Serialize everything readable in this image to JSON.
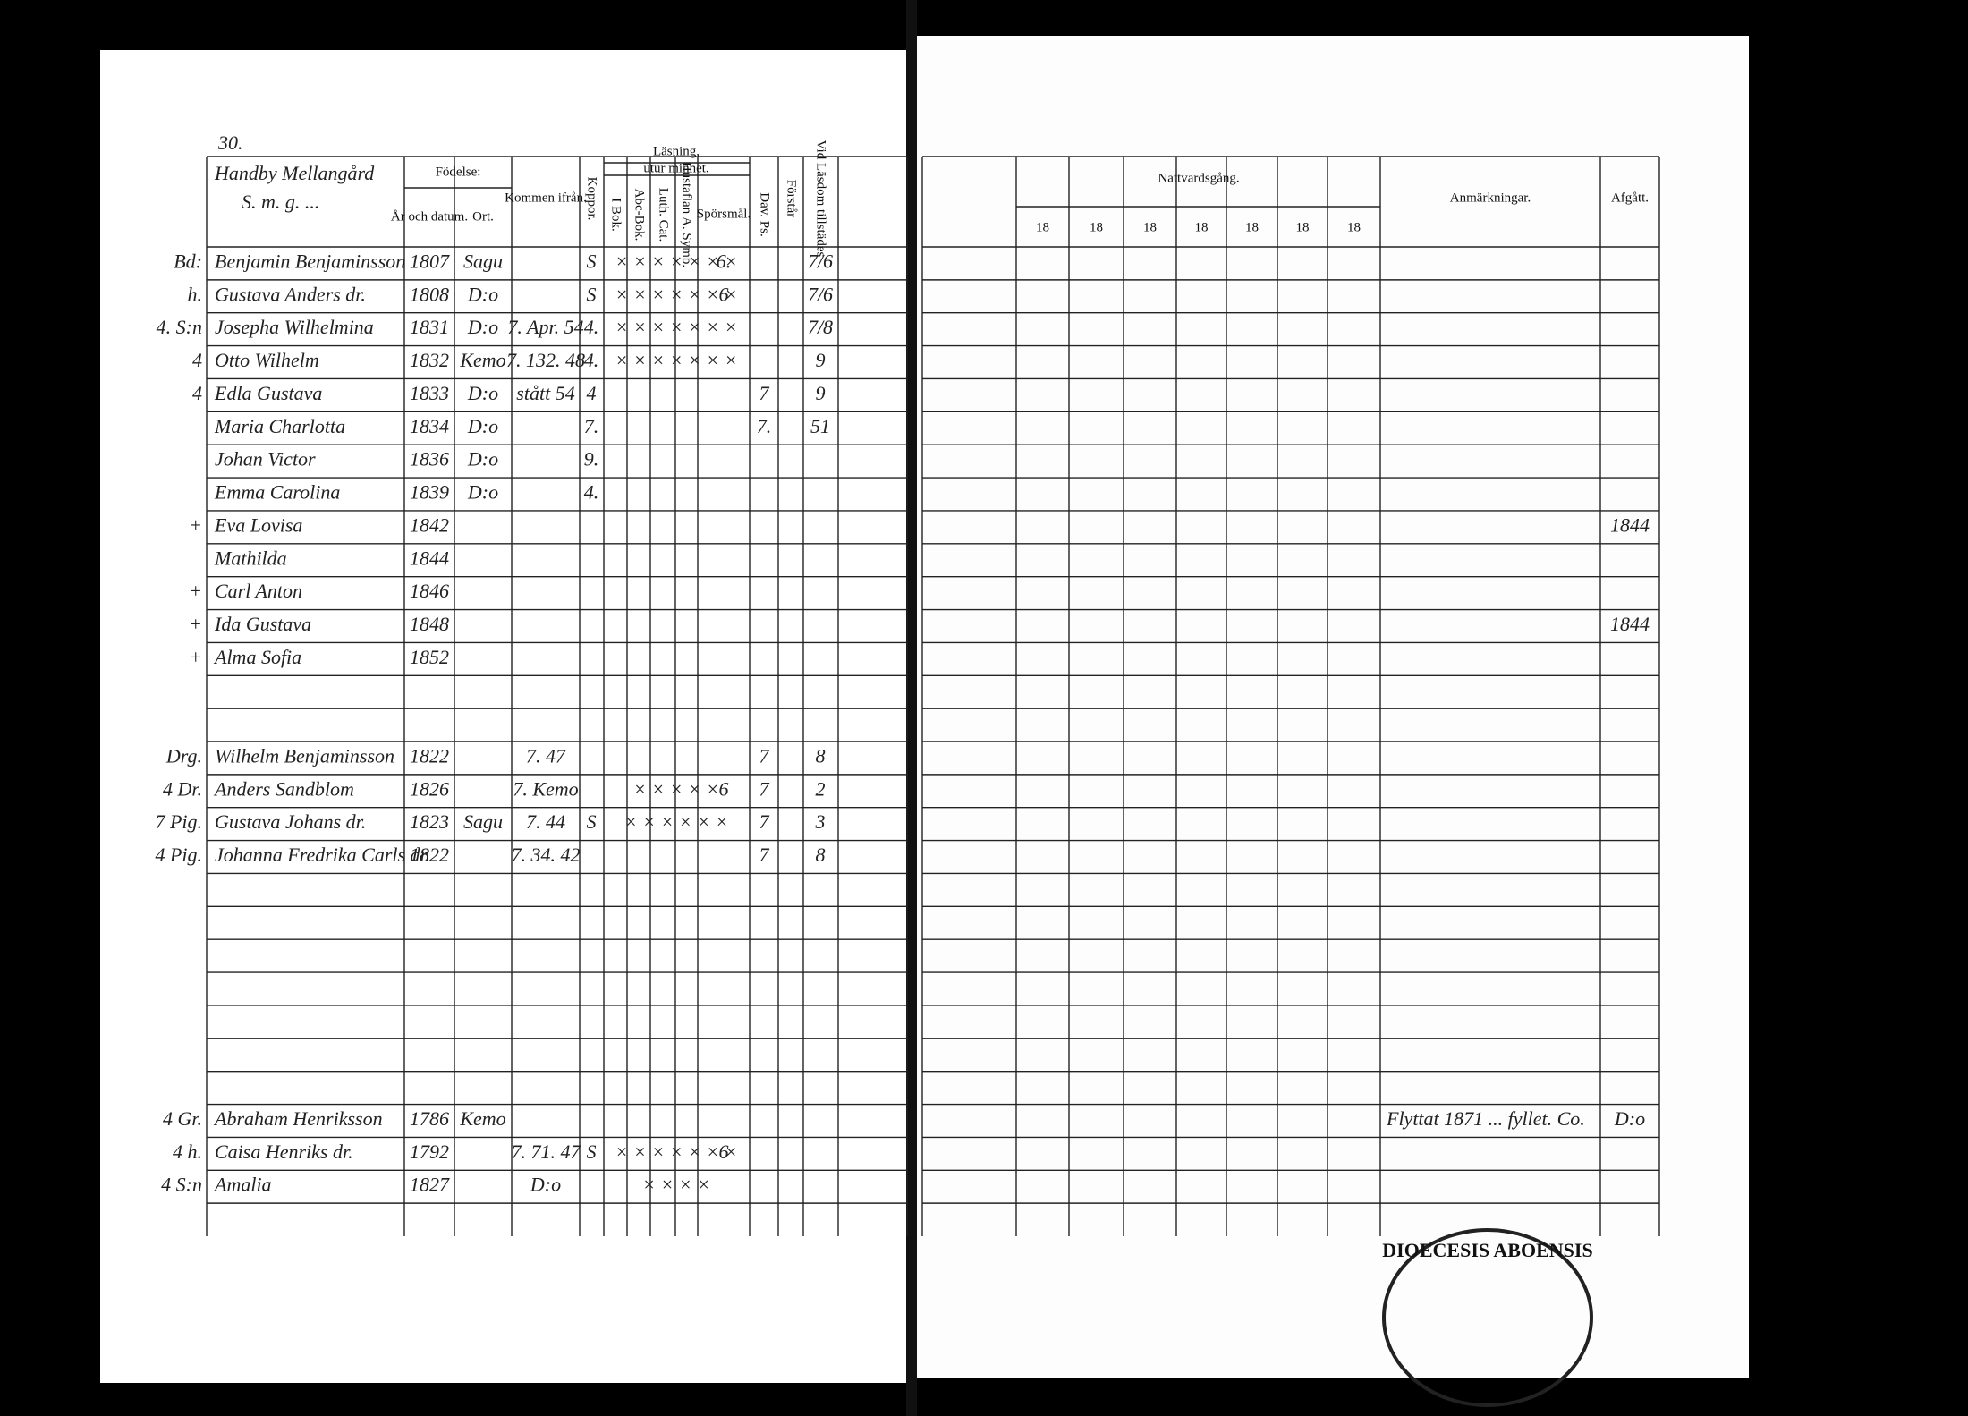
{
  "left": {
    "page_number": "30.",
    "farm": "Handby Mellangård",
    "farm_note": "S. m. g. ...",
    "headers": {
      "birth": "Födelse:",
      "year": "År och datum.",
      "place": "Ort.",
      "from": "Kommen ifrån.",
      "smallpox": "Koppor.",
      "reading": "Läsning,",
      "memory": "utur minnet.",
      "book": "I Bok.",
      "abc": "Abc-Bok.",
      "cat": "Luth. Cat.",
      "symb": "Hustaflan A. Symb.",
      "questions": "Spörsmål.",
      "psalms": "Dav. Ps.",
      "understands": "Förstår",
      "exam": "Vid Läsdom tillstädes"
    },
    "sections": [
      {
        "rows": [
          {
            "margin": "Bd:",
            "name": "Benjamin Benjaminsson",
            "born": "1807",
            "place": "Sagu",
            "smallpox": "S",
            "reading": "× × × × × × ×",
            "questions": "6.",
            "exam": "7/6"
          },
          {
            "margin": "h.",
            "name": "Gustava Anders dr.",
            "born": "1808",
            "place": "D:o",
            "smallpox": "S",
            "reading": "× × × × × × ×",
            "questions": "6",
            "exam": "7/6"
          },
          {
            "margin": "4. S:n",
            "name": "Josepha Wilhelmina",
            "born": "1831",
            "place": "D:o",
            "from": "7. Apr. 54",
            "smallpox": "4.",
            "reading": "× × × × × × ×",
            "exam": "7/8"
          },
          {
            "margin": "4",
            "name": "Otto Wilhelm",
            "born": "1832",
            "place": "Kemo",
            "from": "7. 132. 48",
            "smallpox": "4.",
            "reading": "× × × × × × ×",
            "exam": "9"
          },
          {
            "margin": "4",
            "name": "Edla Gustava",
            "born": "1833",
            "place": "D:o",
            "from": "stått 54",
            "smallpox": "4",
            "psalms": "7",
            "exam": "9"
          },
          {
            "name": "Maria Charlotta",
            "born": "1834",
            "place": "D:o",
            "smallpox": "7.",
            "psalms": "7.",
            "exam": "51"
          },
          {
            "name": "Johan Victor",
            "born": "1836",
            "place": "D:o",
            "smallpox": "9."
          },
          {
            "name": "Emma Carolina",
            "born": "1839",
            "place": "D:o",
            "smallpox": "4."
          },
          {
            "margin": "+",
            "name": "Eva Lovisa",
            "born": "1842",
            "left_year": "1844"
          },
          {
            "name": "Mathilda",
            "born": "1844"
          },
          {
            "margin": "+",
            "name": "Carl Anton",
            "born": "1846"
          },
          {
            "margin": "+",
            "name": "Ida Gustava",
            "born": "1848",
            "left_year": "1844"
          },
          {
            "margin": "+",
            "name": "Alma Sofia",
            "born": "1852"
          }
        ]
      },
      {
        "rows": [
          {
            "margin": "Drg.",
            "name": "Wilhelm Benjaminsson",
            "born": "1822",
            "from": "7. 47",
            "psalms": "7",
            "exam": "8"
          },
          {
            "margin": "4 Dr.",
            "name": "Anders Sandblom",
            "born": "1826",
            "from": "7. Kemo",
            "reading": "× × × × ×",
            "questions": "6",
            "psalms": "7",
            "exam": "2"
          },
          {
            "margin": "7 Pig.",
            "name": "Gustava Johans dr.",
            "born": "1823",
            "place": "Sagu",
            "from": "7. 44",
            "smallpox": "S",
            "reading": "× × × × × ×",
            "psalms": "7",
            "exam": "3"
          },
          {
            "margin": "4 Pig.",
            "name": "Johanna Fredrika Carls dr.",
            "born": "1822",
            "from": "7. 34. 42",
            "psalms": "7",
            "exam": "8"
          }
        ]
      },
      {
        "rows": [
          {
            "margin": "4 Gr.",
            "name": "Abraham Henriksson",
            "born": "1786",
            "place": "Kemo",
            "note": "Flyttat 1871 ... fyllet. Co.",
            "left_year": "D:o"
          },
          {
            "margin": "4 h.",
            "name": "Caisa Henriks dr.",
            "born": "1792",
            "from": "7. 71. 47",
            "smallpox": "S",
            "reading": "× × × × × × ×",
            "questions": "6"
          },
          {
            "margin": "4 S:n",
            "name": "Amalia",
            "born": "1827",
            "from": "D:o",
            "reading": "× × × ×"
          }
        ]
      }
    ]
  },
  "right": {
    "headers": {
      "communion": "Nattvardsgång.",
      "years": [
        "18",
        "18",
        "18",
        "18",
        "18",
        "18",
        "18"
      ],
      "remarks": "Anmärkningar.",
      "departed": "Afgått."
    },
    "stamp": "DIOECESIS ABOENSIS"
  }
}
